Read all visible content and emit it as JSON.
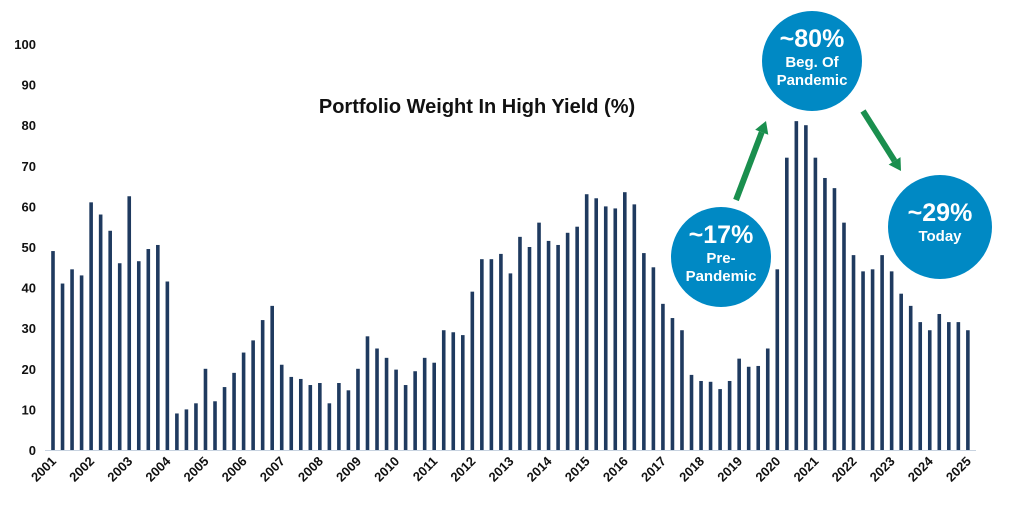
{
  "chart_data": {
    "type": "bar",
    "title": "Portfolio Weight In High Yield (%)",
    "xlabel": "",
    "ylabel": "",
    "ylim": [
      0,
      100
    ],
    "yticks": [
      "0",
      "10",
      "20",
      "30",
      "40",
      "50",
      "60",
      "70",
      "80",
      "90",
      "100"
    ],
    "grid": false,
    "frequency": "quarterly",
    "start_year": 2001,
    "xtick_labels": [
      "2001",
      "2002",
      "2003",
      "2004",
      "2005",
      "2006",
      "2007",
      "2008",
      "2009",
      "2010",
      "2011",
      "2012",
      "2013",
      "2014",
      "2015",
      "2016",
      "2017",
      "2018",
      "2019",
      "2020",
      "2021",
      "2022",
      "2023",
      "2024",
      "2025"
    ],
    "values": [
      49,
      41,
      44.5,
      43,
      61,
      58,
      54,
      46,
      62.5,
      46.5,
      49.5,
      50.5,
      41.5,
      9,
      10,
      11.5,
      20,
      12,
      15.5,
      19,
      24,
      27,
      32,
      35.5,
      21,
      18,
      17.5,
      16,
      16.5,
      11.5,
      16.5,
      14.7,
      20,
      28,
      25,
      22.7,
      19.8,
      16,
      19.4,
      22.7,
      21.5,
      29.5,
      29,
      28.3,
      39,
      47,
      47,
      48.3,
      43.5,
      52.5,
      50,
      56,
      51.5,
      50.5,
      53.5,
      55,
      63,
      62,
      60,
      59.5,
      63.5,
      60.5,
      48.5,
      45,
      36,
      32.5,
      29.5,
      18.5,
      17,
      16.8,
      15,
      17,
      22.5,
      20.5,
      20.7,
      25,
      44.5,
      72,
      81,
      80,
      72,
      67,
      64.5,
      56,
      48,
      44,
      44.5,
      48,
      44,
      38.5,
      35.5,
      31.5,
      29.5,
      33.5,
      31.5,
      31.5,
      29.5
    ],
    "bar_color": "#1F3A5F",
    "annotations": [
      {
        "big": "~17%",
        "lines": [
          "Pre-",
          "Pandemic"
        ]
      },
      {
        "big": "~80%",
        "lines": [
          "Beg. Of",
          "Pandemic"
        ]
      },
      {
        "big": "~29%",
        "lines": [
          "Today"
        ]
      }
    ],
    "bubble_color": "#0089C4",
    "arrow_color": "#1A8F4E"
  }
}
